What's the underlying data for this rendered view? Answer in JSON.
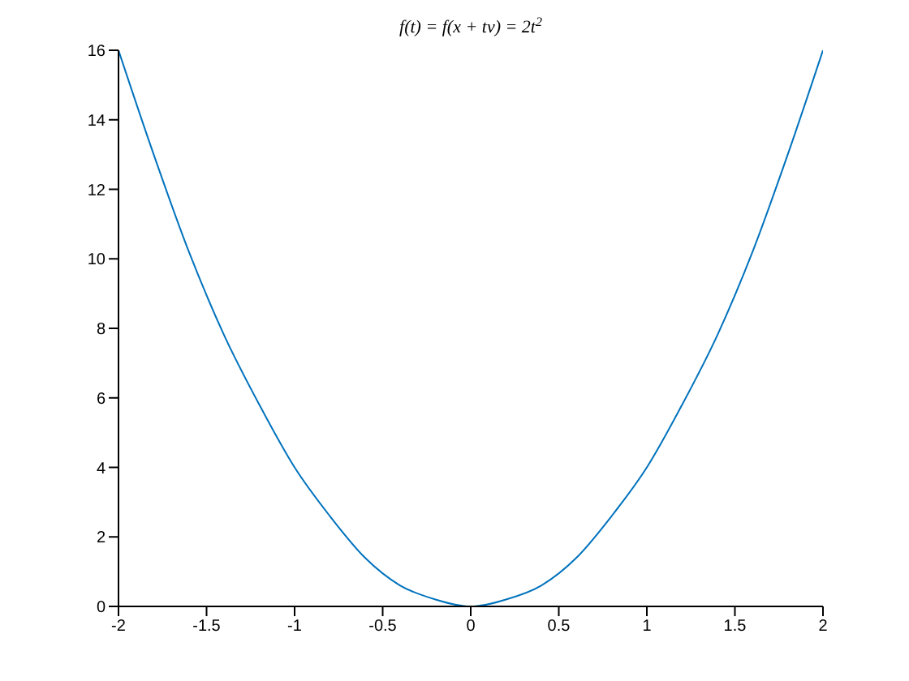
{
  "chart_data": {
    "type": "line",
    "title": "f(t) = f(x + tv) = 2t$^{2}$",
    "x": [
      -2,
      -1.8,
      -1.6,
      -1.4,
      -1.2,
      -1,
      -0.8,
      -0.6,
      -0.4,
      -0.2,
      0,
      0.2,
      0.4,
      0.6,
      0.8,
      1,
      1.2,
      1.4,
      1.6,
      1.8,
      2
    ],
    "series": [
      {
        "color": "#0072bd",
        "values": [
          16,
          13,
          10.2,
          7.8,
          5.8,
          4,
          2.6,
          1.4,
          0.6,
          0.2,
          0,
          0.2,
          0.6,
          1.4,
          2.6,
          4,
          5.8,
          7.8,
          10.2,
          13,
          16
        ]
      }
    ],
    "xlim": [
      -2,
      2
    ],
    "xticks": [
      -2,
      -1.5,
      -1,
      -0.5,
      0,
      0.5,
      1,
      1.5,
      2
    ],
    "ylim": [
      0,
      16
    ],
    "yticks": [
      0,
      2,
      4,
      6,
      8,
      10,
      12,
      14,
      16
    ],
    "grid": false,
    "legend": false,
    "marker": "none",
    "line_style": "solid"
  }
}
